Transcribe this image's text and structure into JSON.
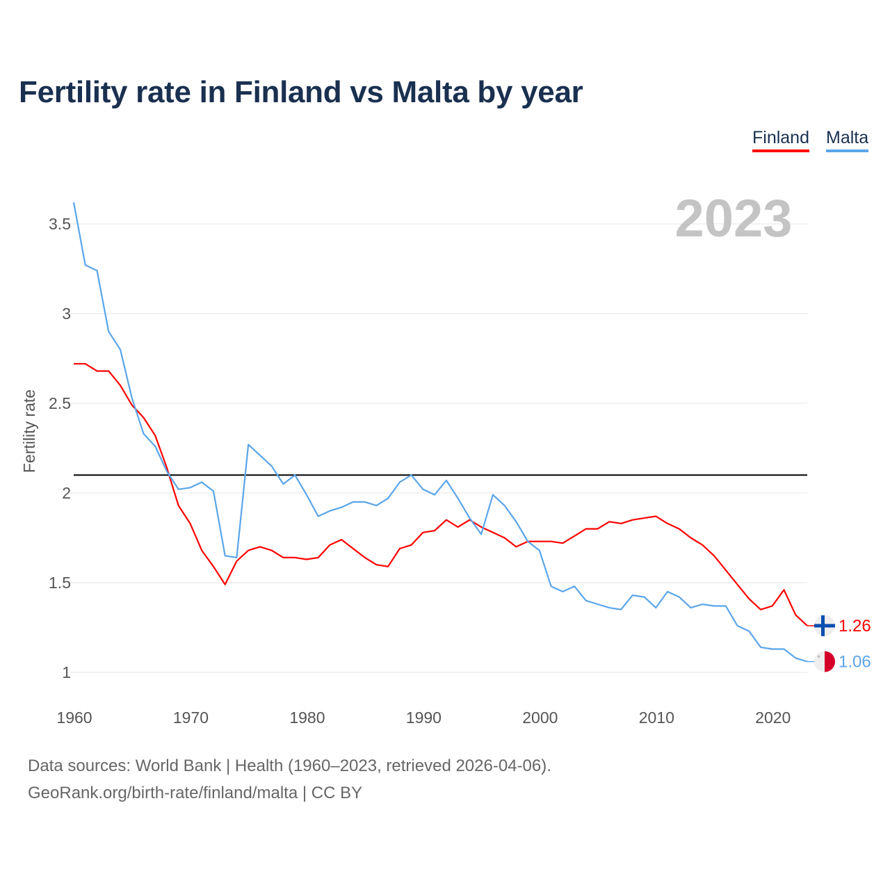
{
  "title": "Fertility rate in Finland vs Malta by year",
  "legend": [
    {
      "label": "Finland",
      "color": "#ff0000"
    },
    {
      "label": "Malta",
      "color": "#5aa5ea"
    }
  ],
  "year_watermark": "2023",
  "sources": {
    "line1": "Data sources: World Bank | Health (1960–2023, retrieved 2026-04-06).",
    "line2": "GeoRank.org/birth-rate/finland/malta | CC BY"
  },
  "chart_data": {
    "type": "line",
    "title": "Fertility rate in Finland vs Malta by year",
    "xlabel": "",
    "ylabel": "Fertility rate",
    "xlim": [
      1960,
      2023
    ],
    "ylim": [
      0.85,
      3.65
    ],
    "x_ticks": [
      1960,
      1970,
      1980,
      1990,
      2000,
      2010,
      2020
    ],
    "x_tick_labels": [
      "1960",
      "1970",
      "1980",
      "1990",
      "2000",
      "2010",
      "2020"
    ],
    "y_ticks": [
      1,
      1.5,
      2,
      2.5,
      3,
      3.5
    ],
    "y_tick_labels": [
      "1",
      "1.5",
      "2",
      "2.5",
      "3",
      "3.5"
    ],
    "grid": true,
    "legend_position": "top-right",
    "reference_line": {
      "y": 2.1,
      "color": "#000000"
    },
    "x": [
      1960,
      1961,
      1962,
      1963,
      1964,
      1965,
      1966,
      1967,
      1968,
      1969,
      1970,
      1971,
      1972,
      1973,
      1974,
      1975,
      1976,
      1977,
      1978,
      1979,
      1980,
      1981,
      1982,
      1983,
      1984,
      1985,
      1986,
      1987,
      1988,
      1989,
      1990,
      1991,
      1992,
      1993,
      1994,
      1995,
      1996,
      1997,
      1998,
      1999,
      2000,
      2001,
      2002,
      2003,
      2004,
      2005,
      2006,
      2007,
      2008,
      2009,
      2010,
      2011,
      2012,
      2013,
      2014,
      2015,
      2016,
      2017,
      2018,
      2019,
      2020,
      2021,
      2022,
      2023
    ],
    "series": [
      {
        "name": "Finland",
        "color": "#ff0000",
        "end_label": "1.26",
        "values": [
          2.72,
          2.72,
          2.68,
          2.68,
          2.6,
          2.49,
          2.42,
          2.32,
          2.14,
          1.93,
          1.83,
          1.68,
          1.59,
          1.49,
          1.62,
          1.68,
          1.7,
          1.68,
          1.64,
          1.64,
          1.63,
          1.64,
          1.71,
          1.74,
          1.69,
          1.64,
          1.6,
          1.59,
          1.69,
          1.71,
          1.78,
          1.79,
          1.85,
          1.81,
          1.85,
          1.81,
          1.78,
          1.75,
          1.7,
          1.73,
          1.73,
          1.73,
          1.72,
          1.76,
          1.8,
          1.8,
          1.84,
          1.83,
          1.85,
          1.86,
          1.87,
          1.83,
          1.8,
          1.75,
          1.71,
          1.65,
          1.57,
          1.49,
          1.41,
          1.35,
          1.37,
          1.46,
          1.32,
          1.26
        ]
      },
      {
        "name": "Malta",
        "color": "#5aa5ea",
        "end_label": "1.06",
        "values": [
          3.62,
          3.27,
          3.24,
          2.9,
          2.8,
          2.53,
          2.33,
          2.26,
          2.12,
          2.02,
          2.03,
          2.06,
          2.01,
          1.65,
          1.64,
          2.27,
          2.21,
          2.15,
          2.05,
          2.1,
          1.99,
          1.87,
          1.9,
          1.92,
          1.95,
          1.95,
          1.93,
          1.97,
          2.06,
          2.1,
          2.02,
          1.99,
          2.07,
          1.97,
          1.86,
          1.77,
          1.99,
          1.93,
          1.84,
          1.73,
          1.68,
          1.48,
          1.45,
          1.48,
          1.4,
          1.38,
          1.36,
          1.35,
          1.43,
          1.42,
          1.36,
          1.45,
          1.42,
          1.36,
          1.38,
          1.37,
          1.37,
          1.26,
          1.23,
          1.14,
          1.13,
          1.13,
          1.08,
          1.06
        ]
      }
    ]
  }
}
